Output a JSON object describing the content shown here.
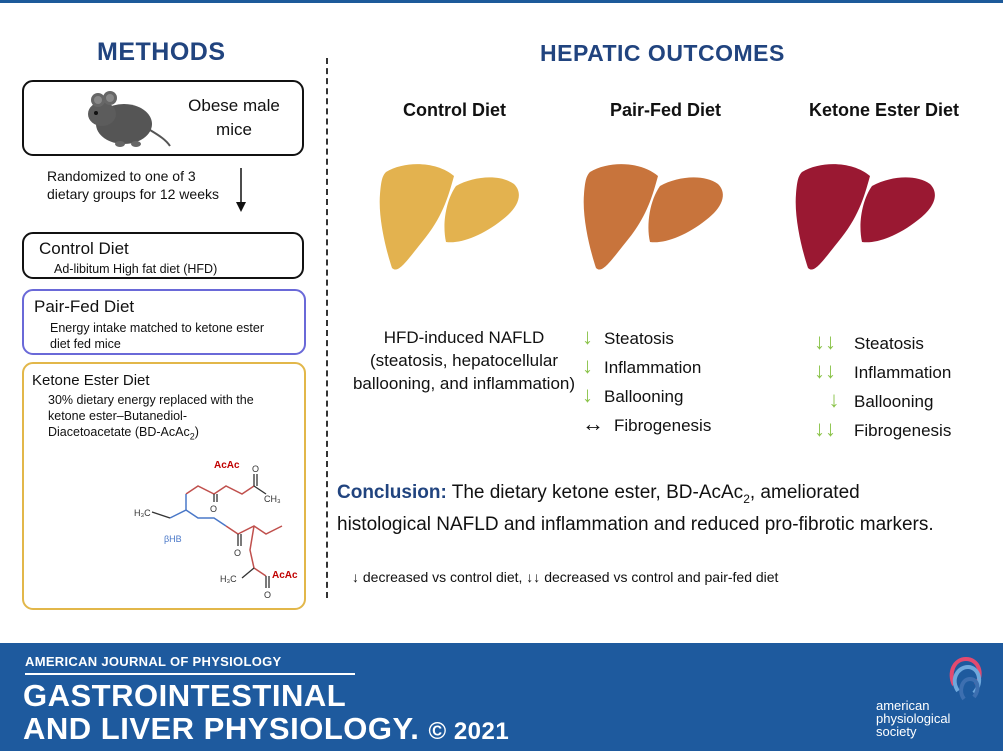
{
  "methods": {
    "title": "METHODS",
    "mice_text_line1": "Obese male",
    "mice_text_line2": "mice",
    "randomized_line1": "Randomized to one of 3",
    "randomized_line2": "dietary groups for 12 weeks",
    "control": {
      "title": "Control Diet",
      "body": "Ad-libitum High fat diet (HFD)"
    },
    "pairfed": {
      "title": "Pair-Fed Diet",
      "body_line1": "Energy intake matched to ketone ester",
      "body_line2": "diet fed mice"
    },
    "ketone": {
      "title": "Ketone Ester Diet",
      "body_line1": "30% dietary energy replaced with the",
      "body_line2": "ketone ester–Butanediol-",
      "body_line3_pre": "Diacetoacetate (BD-AcAc",
      "body_line3_sub": "2",
      "body_line3_post": ")"
    },
    "molecule": {
      "acac_top": "AcAc",
      "acac_bottom": "AcAc",
      "bhb": "βHB",
      "ch3_top": "CH₃",
      "h3c_left": "H₃C",
      "h3c_bottom": "H₃C",
      "o": "O"
    }
  },
  "outcomes": {
    "title": "HEPATIC OUTCOMES",
    "columns": [
      {
        "title": "Control Diet",
        "liver_color": "#e3b24f"
      },
      {
        "title": "Pair-Fed Diet",
        "liver_color": "#c8743c"
      },
      {
        "title": "Ketone Ester Diet",
        "liver_color": "#9a1832"
      }
    ],
    "control_text": [
      "HFD-induced NAFLD",
      "(steatosis, hepatocellular",
      "ballooning, and inflammation)"
    ],
    "pairfed_items": [
      {
        "arrow": "↓",
        "label": "Steatosis"
      },
      {
        "arrow": "↓",
        "label": "Inflammation"
      },
      {
        "arrow": "↓",
        "label": "Ballooning"
      },
      {
        "arrow": "↔",
        "label": "Fibrogenesis"
      }
    ],
    "ketone_items": [
      {
        "arrow": "↓↓",
        "label": "Steatosis"
      },
      {
        "arrow": "↓↓",
        "label": "Inflammation"
      },
      {
        "arrow": "↓",
        "label": "Ballooning"
      },
      {
        "arrow": "↓↓",
        "label": "Fibrogenesis"
      }
    ]
  },
  "conclusion": {
    "label": "Conclusion:",
    "text_pre": " The dietary ketone ester, BD-AcAc",
    "text_sub": "2",
    "text_post": ", ameliorated",
    "line2": "histological NAFLD and inflammation and reduced pro-fibrotic markers."
  },
  "legend": "↓ decreased vs control diet, ↓↓ decreased vs control and pair-fed diet",
  "footer": {
    "journal_top": "AMERICAN JOURNAL OF PHYSIOLOGY",
    "journal_line1": "GASTROINTESTINAL",
    "journal_line2": "AND LIVER PHYSIOLOGY.",
    "copyright": "© 2021",
    "society_line1": "american",
    "society_line2": "physiological",
    "society_line3": "society"
  }
}
